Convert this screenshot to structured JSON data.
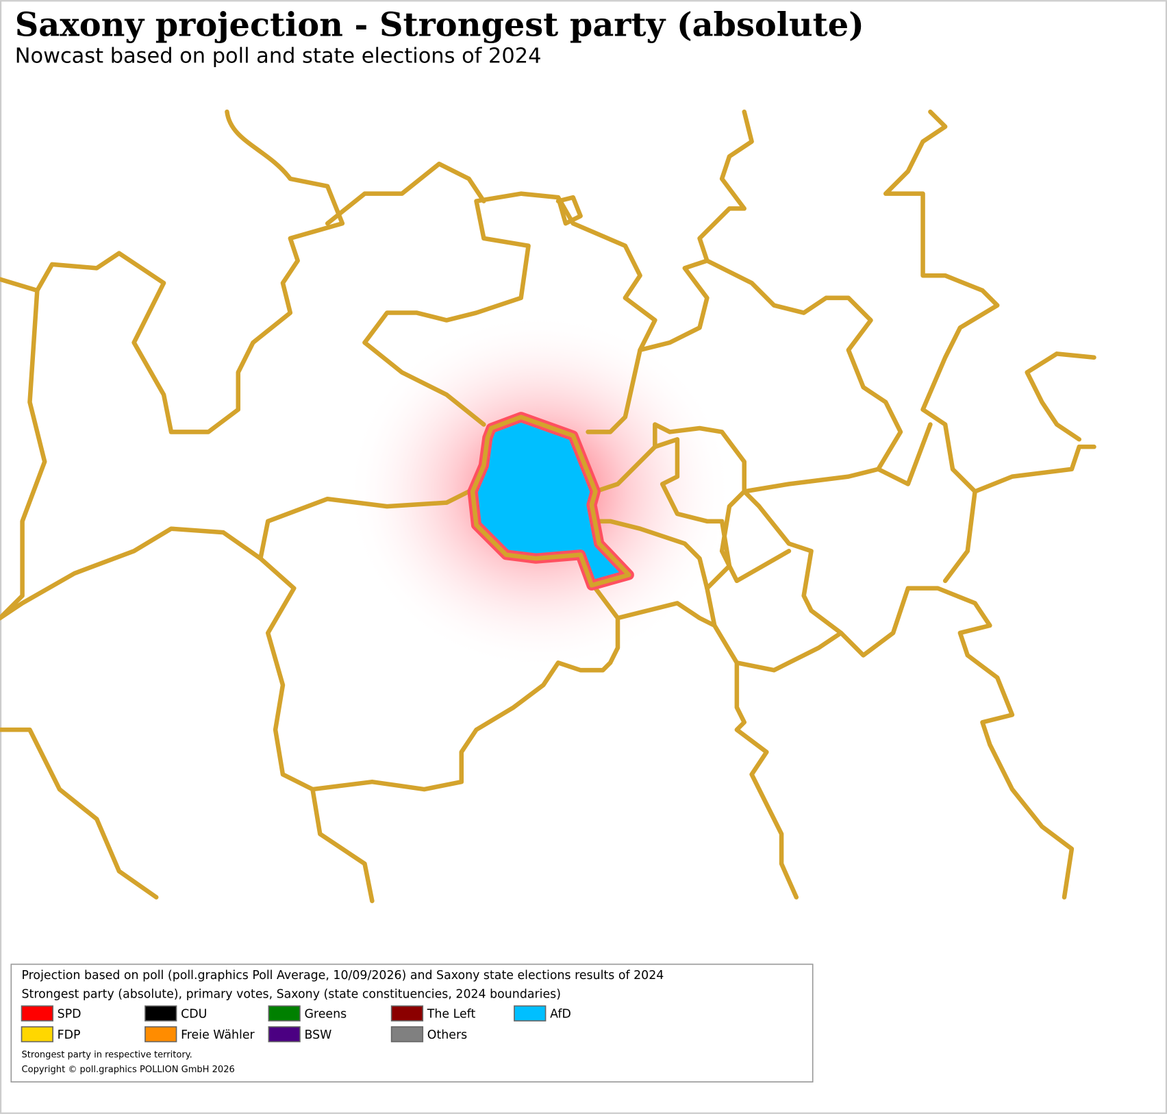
{
  "header": {
    "title": "Saxony projection - Strongest party (absolute)",
    "subtitle": "Nowcast based on poll and state elections of 2024"
  },
  "legend": {
    "lines": [
      "Projection based on poll (poll.graphics Poll Average, 10/09/2026) and Saxony state elections results of 2024",
      "Strongest party (absolute), primary votes, Saxony (state constituencies, 2024 boundaries)"
    ],
    "parties": [
      {
        "name": "SPD",
        "color": "#ff0000"
      },
      {
        "name": "CDU",
        "color": "#000000"
      },
      {
        "name": "Greens",
        "color": "#008000"
      },
      {
        "name": "The Left",
        "color": "#8b0000"
      },
      {
        "name": "AfD",
        "color": "#00bfff"
      },
      {
        "name": "FDP",
        "color": "#ffd700"
      },
      {
        "name": "Freie Wähler",
        "color": "#ff8c00"
      },
      {
        "name": "BSW",
        "color": "#4b0082"
      },
      {
        "name": "Others",
        "color": "#808080"
      }
    ],
    "notes": [
      "Strongest party in respective territory.",
      "Copyright © poll.graphics POLLION GmbH 2026"
    ]
  }
}
